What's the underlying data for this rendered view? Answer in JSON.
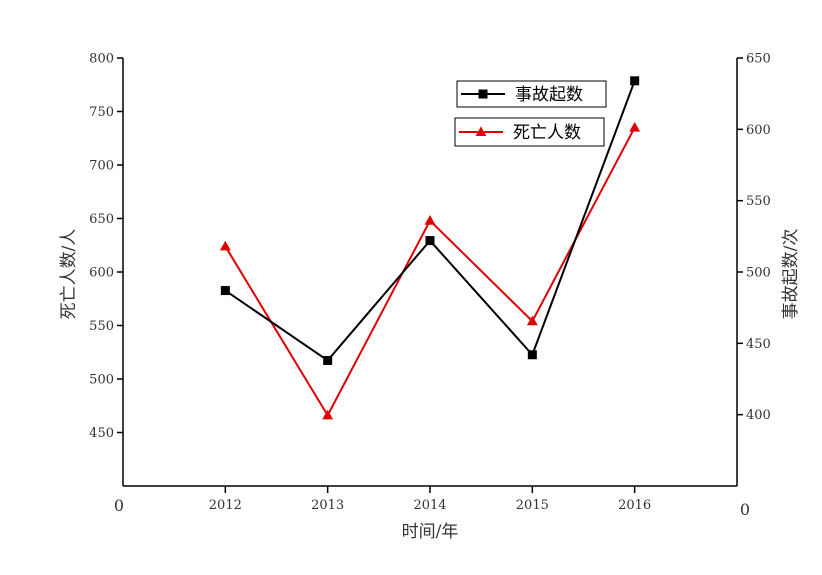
{
  "chart_data": {
    "type": "line",
    "title": "",
    "xlabel": "时间/年",
    "ylabel_left": "死亡人数/人",
    "ylabel_right": "事故起数/次",
    "x": [
      2012,
      2013,
      2014,
      2015,
      2016
    ],
    "x_tick_labels": [
      "0",
      "2012",
      "2013",
      "2014",
      "2015",
      "2016"
    ],
    "xlim": [
      2011,
      2017
    ],
    "ylim_left": [
      400,
      800
    ],
    "ylim_right": [
      350,
      650
    ],
    "y_left_ticks": [
      450,
      500,
      550,
      600,
      650,
      700,
      750,
      800
    ],
    "y_right_ticks": [
      400,
      450,
      500,
      550,
      600,
      650
    ],
    "corner_labels": {
      "left_origin": "0",
      "right_origin": "0"
    },
    "grid": false,
    "legend_position": "top-right",
    "series": [
      {
        "name": "事故起数",
        "axis": "right",
        "marker": "square",
        "color": "#000000",
        "values": [
          487,
          438,
          522,
          442,
          634
        ]
      },
      {
        "name": "死亡人数",
        "axis": "left",
        "marker": "triangle",
        "color": "#e00000",
        "values": [
          624,
          466,
          648,
          554,
          735
        ]
      }
    ]
  }
}
